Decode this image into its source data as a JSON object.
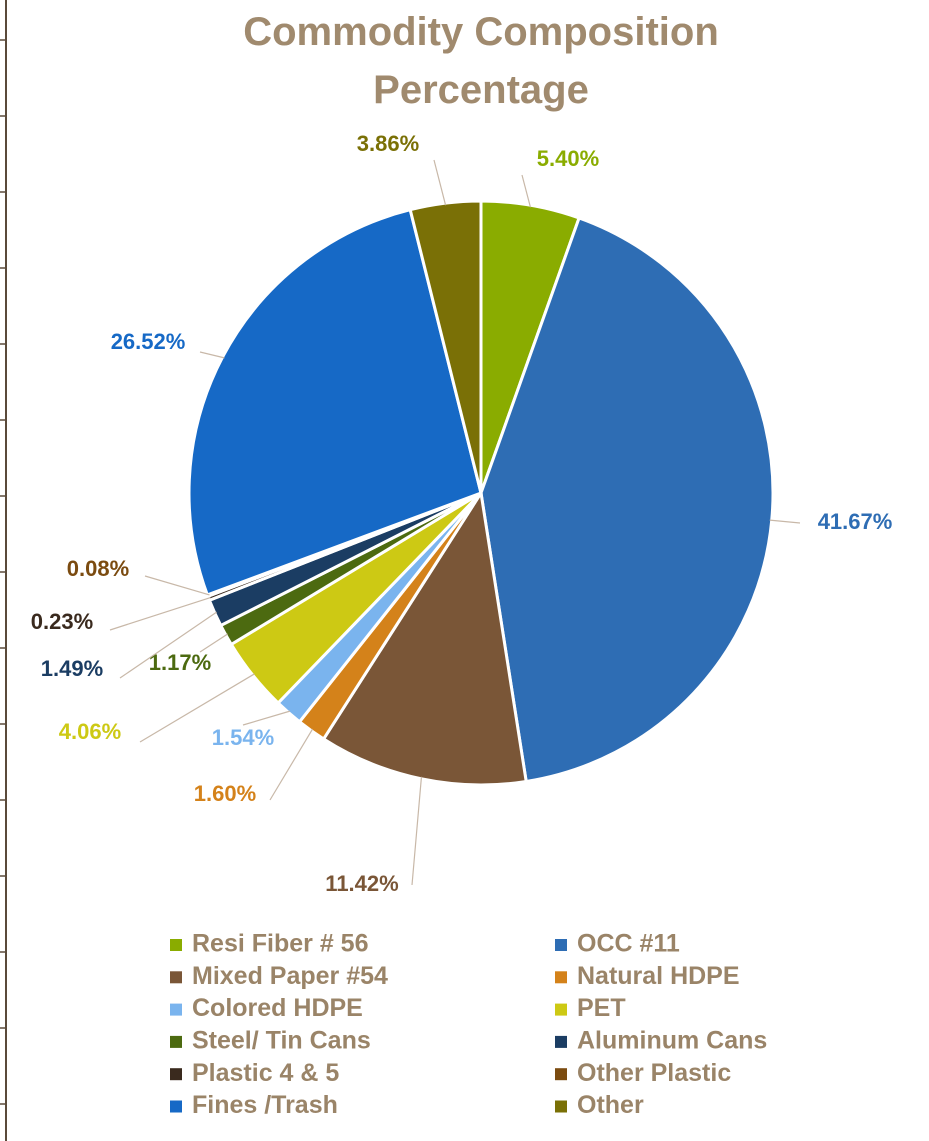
{
  "chart_data": {
    "type": "pie",
    "title": "Commodity Composition Percentage",
    "categories": [
      "Resi Fiber # 56",
      "OCC #11",
      "Mixed Paper #54",
      "Natural HDPE",
      "Colored HDPE",
      "PET",
      "Steel/ Tin Cans",
      "Aluminum Cans",
      "Plastic 4 & 5",
      "Other Plastic",
      "Fines /Trash",
      "Other"
    ],
    "values": [
      5.4,
      41.67,
      11.42,
      1.6,
      1.54,
      4.06,
      1.17,
      1.49,
      0.23,
      0.08,
      26.52,
      3.86
    ],
    "value_labels": [
      "5.40%",
      "41.67%",
      "11.42%",
      "1.60%",
      "1.54%",
      "4.06%",
      "1.17%",
      "1.49%",
      "0.23%",
      "0.08%",
      "26.52%",
      "3.86%"
    ],
    "colors": [
      "#8aac00",
      "#2e6db4",
      "#7a5637",
      "#d4821a",
      "#7ab4ee",
      "#cdc914",
      "#4c6a10",
      "#1b3d63",
      "#3a2a1e",
      "#7b4b10",
      "#1669c6",
      "#7a7006"
    ],
    "legend": "bottom"
  }
}
